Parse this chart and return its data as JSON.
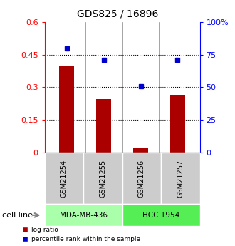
{
  "title": "GDS825 / 16896",
  "samples": [
    "GSM21254",
    "GSM21255",
    "GSM21256",
    "GSM21257"
  ],
  "log_ratios": [
    0.4,
    0.245,
    0.018,
    0.265
  ],
  "percentile_ranks": [
    80,
    71,
    51,
    71
  ],
  "cell_line_labels": [
    "MDA-MB-436",
    "HCC 1954"
  ],
  "cell_line_colors": [
    "#aaffaa",
    "#55ee55"
  ],
  "bar_color": "#aa0000",
  "dot_color": "#0000cc",
  "left_ylim": [
    0,
    0.6
  ],
  "right_ylim": [
    0,
    100
  ],
  "left_yticks": [
    0,
    0.15,
    0.3,
    0.45,
    0.6
  ],
  "left_yticklabels": [
    "0",
    "0.15",
    "0.3",
    "0.45",
    "0.6"
  ],
  "right_yticks": [
    0,
    25,
    50,
    75,
    100
  ],
  "right_yticklabels": [
    "0",
    "25",
    "50",
    "75",
    "100%"
  ],
  "hline_values": [
    0.15,
    0.3,
    0.45
  ],
  "bar_width": 0.4,
  "sample_box_color": "#cccccc",
  "cell_line_label": "cell line"
}
